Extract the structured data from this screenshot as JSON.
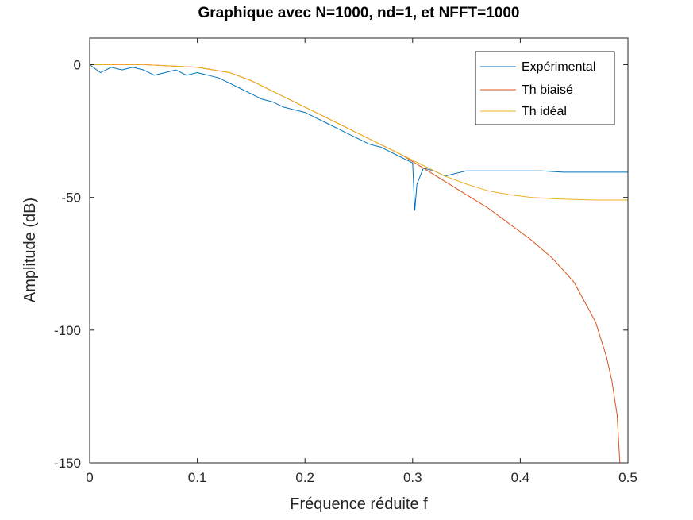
{
  "chart_data": {
    "type": "line",
    "title": "Graphique avec N=1000, nd=1, et NFFT=1000",
    "xlabel": "Fréquence réduite f",
    "ylabel": "Amplitude (dB)",
    "xlim": [
      0,
      0.5
    ],
    "ylim": [
      -150,
      10
    ],
    "xticks": [
      0,
      0.1,
      0.2,
      0.3,
      0.4,
      0.5
    ],
    "xtick_labels": [
      "0",
      "0.1",
      "0.2",
      "0.3",
      "0.4",
      "0.5"
    ],
    "yticks": [
      0,
      -50,
      -100,
      -150
    ],
    "ytick_labels": [
      "0",
      "-50",
      "-100",
      "-150"
    ],
    "grid": false,
    "legend_position": "top-right",
    "series": [
      {
        "name": "Expérimental",
        "color": "#0072BD",
        "x": [
          0,
          0.01,
          0.02,
          0.03,
          0.04,
          0.05,
          0.06,
          0.07,
          0.08,
          0.09,
          0.1,
          0.11,
          0.12,
          0.13,
          0.14,
          0.15,
          0.16,
          0.17,
          0.18,
          0.19,
          0.2,
          0.21,
          0.22,
          0.23,
          0.24,
          0.25,
          0.26,
          0.27,
          0.28,
          0.29,
          0.3,
          0.302,
          0.304,
          0.31,
          0.32,
          0.33,
          0.34,
          0.35,
          0.36,
          0.37,
          0.38,
          0.39,
          0.4,
          0.42,
          0.44,
          0.46,
          0.48,
          0.5
        ],
        "y": [
          0,
          -3,
          -1,
          -2,
          -1,
          -2,
          -4,
          -3,
          -2,
          -4,
          -3,
          -4,
          -5,
          -7,
          -9,
          -11,
          -13,
          -14,
          -16,
          -17,
          -18,
          -20,
          -22,
          -24,
          -26,
          -28,
          -30,
          -31,
          -33,
          -35,
          -37,
          -55,
          -45,
          -39,
          -40,
          -42,
          -41,
          -40,
          -40,
          -40,
          -40,
          -40,
          -40,
          -40,
          -40.5,
          -40.5,
          -40.5,
          -40.5
        ]
      },
      {
        "name": "Th biaisé",
        "color": "#D95319",
        "x": [
          0,
          0.05,
          0.1,
          0.13,
          0.15,
          0.17,
          0.19,
          0.21,
          0.23,
          0.25,
          0.27,
          0.29,
          0.31,
          0.33,
          0.35,
          0.37,
          0.39,
          0.41,
          0.43,
          0.45,
          0.47,
          0.48,
          0.485,
          0.49,
          0.4925
        ],
        "y": [
          0,
          0,
          -1,
          -3,
          -6,
          -10,
          -14,
          -18,
          -22,
          -26,
          -30,
          -34,
          -39,
          -44,
          -49,
          -54,
          -60,
          -66,
          -73,
          -82,
          -97,
          -110,
          -119,
          -132,
          -150
        ]
      },
      {
        "name": "Th idéal",
        "color": "#EDB120",
        "x": [
          0,
          0.05,
          0.1,
          0.13,
          0.15,
          0.17,
          0.19,
          0.21,
          0.23,
          0.25,
          0.27,
          0.29,
          0.31,
          0.33,
          0.35,
          0.37,
          0.39,
          0.41,
          0.43,
          0.45,
          0.47,
          0.5
        ],
        "y": [
          0,
          0,
          -1,
          -3,
          -6,
          -10,
          -14,
          -18,
          -22,
          -26,
          -30,
          -34,
          -38,
          -42,
          -45,
          -47.5,
          -49,
          -50,
          -50.5,
          -50.8,
          -51,
          -51
        ]
      }
    ]
  }
}
